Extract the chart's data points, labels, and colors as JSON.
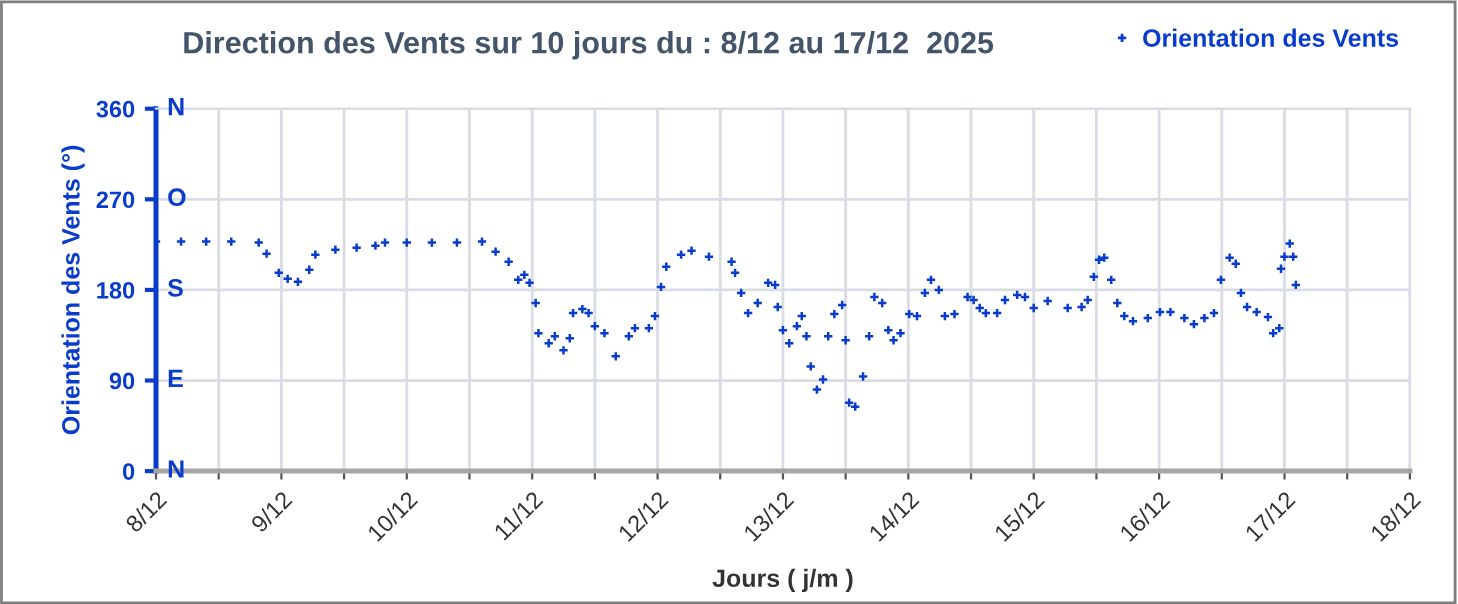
{
  "chart_data": {
    "type": "scatter",
    "title": "Direction des Vents sur 10 jours du : 8/12 au 17/12  2025",
    "xlabel": "Jours ( j/m )",
    "ylabel": "Orientation des Vents (°)",
    "series": [
      {
        "name": "Orientation des Vents",
        "color": "#0a3ccc",
        "marker": "cross",
        "x": [
          "2025-12-08T00:00",
          "2025-12-08T04:48",
          "2025-12-08T09:36",
          "2025-12-08T14:24",
          "2025-12-08T19:40",
          "2025-12-08T21:10",
          "2025-12-08T23:30",
          "2025-12-09T01:12",
          "2025-12-09T03:10",
          "2025-12-09T05:20",
          "2025-12-09T06:30",
          "2025-12-09T10:20",
          "2025-12-09T14:24",
          "2025-12-09T18:00",
          "2025-12-09T19:50",
          "2025-12-10T00:00",
          "2025-12-10T04:48",
          "2025-12-10T09:36",
          "2025-12-10T14:24",
          "2025-12-10T17:00",
          "2025-12-10T19:30",
          "2025-12-10T21:20",
          "2025-12-10T22:30",
          "2025-12-10T23:30",
          "2025-12-11T00:40",
          "2025-12-11T01:12",
          "2025-12-11T03:10",
          "2025-12-11T04:20",
          "2025-12-11T06:00",
          "2025-12-11T07:12",
          "2025-12-11T07:50",
          "2025-12-11T09:36",
          "2025-12-11T10:48",
          "2025-12-11T12:00",
          "2025-12-11T13:50",
          "2025-12-11T16:00",
          "2025-12-11T18:30",
          "2025-12-11T19:40",
          "2025-12-11T22:20",
          "2025-12-11T23:30",
          "2025-12-12T00:40",
          "2025-12-12T01:40",
          "2025-12-12T04:30",
          "2025-12-12T06:30",
          "2025-12-12T09:50",
          "2025-12-12T14:10",
          "2025-12-12T14:50",
          "2025-12-12T16:00",
          "2025-12-12T17:20",
          "2025-12-12T19:10",
          "2025-12-12T21:10",
          "2025-12-12T22:30",
          "2025-12-12T23:00",
          "2025-12-13T00:00",
          "2025-12-13T01:12",
          "2025-12-13T02:40",
          "2025-12-13T03:36",
          "2025-12-13T04:30",
          "2025-12-13T05:20",
          "2025-12-13T06:30",
          "2025-12-13T07:40",
          "2025-12-13T08:40",
          "2025-12-13T09:50",
          "2025-12-13T11:20",
          "2025-12-13T12:00",
          "2025-12-13T12:40",
          "2025-12-13T13:50",
          "2025-12-13T15:20",
          "2025-12-13T16:30",
          "2025-12-13T17:30",
          "2025-12-13T19:00",
          "2025-12-13T20:10",
          "2025-12-13T21:10",
          "2025-12-13T22:30",
          "2025-12-14T00:10",
          "2025-12-14T01:40",
          "2025-12-14T03:10",
          "2025-12-14T04:20",
          "2025-12-14T05:50",
          "2025-12-14T07:00",
          "2025-12-14T08:50",
          "2025-12-14T11:20",
          "2025-12-14T12:30",
          "2025-12-14T13:40",
          "2025-12-14T14:50",
          "2025-12-14T17:00",
          "2025-12-14T18:30",
          "2025-12-14T20:50",
          "2025-12-14T22:20",
          "2025-12-15T00:00",
          "2025-12-15T02:40",
          "2025-12-15T06:30",
          "2025-12-15T09:10",
          "2025-12-15T10:20",
          "2025-12-15T11:30",
          "2025-12-15T12:30",
          "2025-12-15T13:30",
          "2025-12-15T14:50",
          "2025-12-15T16:00",
          "2025-12-15T17:20",
          "2025-12-15T19:00",
          "2025-12-15T21:50",
          "2025-12-16T00:10",
          "2025-12-16T02:10",
          "2025-12-16T04:50",
          "2025-12-16T06:40",
          "2025-12-16T08:40",
          "2025-12-16T10:30",
          "2025-12-16T11:50",
          "2025-12-16T13:30",
          "2025-12-16T14:40",
          "2025-12-16T15:40",
          "2025-12-16T16:50",
          "2025-12-16T18:40",
          "2025-12-16T20:50",
          "2025-12-16T21:50",
          "2025-12-16T23:00",
          "2025-12-16T23:20",
          "2025-12-17T00:00",
          "2025-12-17T01:00",
          "2025-12-17T01:40",
          "2025-12-17T02:10"
        ],
        "values": [
          228,
          228,
          228,
          228,
          227,
          216,
          197,
          191,
          188,
          200,
          215,
          220,
          222,
          224,
          227,
          227,
          227,
          227,
          228,
          218,
          208,
          190,
          195,
          187,
          167,
          137,
          127,
          134,
          120,
          132,
          157,
          161,
          157,
          144,
          137,
          114,
          134,
          142,
          142,
          154,
          183,
          203,
          215,
          219,
          213,
          208,
          197,
          177,
          157,
          167,
          187,
          185,
          163,
          140,
          127,
          144,
          154,
          134,
          104,
          81,
          91,
          134,
          156,
          165,
          130,
          68,
          64,
          94,
          134,
          173,
          167,
          140,
          130,
          137,
          156,
          154,
          177,
          190,
          180,
          154,
          156,
          173,
          170,
          162,
          157,
          157,
          170,
          175,
          173,
          162,
          169,
          162,
          163,
          170,
          193,
          210,
          212,
          190,
          167,
          154,
          149,
          152,
          158,
          158,
          152,
          146,
          152,
          157,
          190,
          212,
          206,
          177,
          163,
          158,
          153,
          137,
          142,
          201,
          213,
          226,
          213,
          185
        ]
      }
    ],
    "xlim": [
      "2025-12-08",
      "2025-12-18"
    ],
    "xticks": [
      {
        "value": "2025-12-08",
        "label": "8/12"
      },
      {
        "value": "2025-12-08T12:00",
        "label": null
      },
      {
        "value": "2025-12-09",
        "label": "9/12"
      },
      {
        "value": "2025-12-09T12:00",
        "label": null
      },
      {
        "value": "2025-12-10",
        "label": "10/12"
      },
      {
        "value": "2025-12-10T12:00",
        "label": null
      },
      {
        "value": "2025-12-11",
        "label": "11/12"
      },
      {
        "value": "2025-12-11T12:00",
        "label": null
      },
      {
        "value": "2025-12-12",
        "label": "12/12"
      },
      {
        "value": "2025-12-12T12:00",
        "label": null
      },
      {
        "value": "2025-12-13",
        "label": "13/12"
      },
      {
        "value": "2025-12-13T12:00",
        "label": null
      },
      {
        "value": "2025-12-14",
        "label": "14/12"
      },
      {
        "value": "2025-12-14T12:00",
        "label": null
      },
      {
        "value": "2025-12-15",
        "label": "15/12"
      },
      {
        "value": "2025-12-15T12:00",
        "label": null
      },
      {
        "value": "2025-12-16",
        "label": "16/12"
      },
      {
        "value": "2025-12-16T12:00",
        "label": null
      },
      {
        "value": "2025-12-17",
        "label": "17/12"
      },
      {
        "value": "2025-12-17T12:00",
        "label": null
      },
      {
        "value": "2025-12-18",
        "label": "18/12"
      }
    ],
    "ylim": [
      0,
      360
    ],
    "yticks": [
      0,
      90,
      180,
      270,
      360
    ],
    "annotations": [
      "N",
      "E",
      "S",
      "O",
      "N"
    ],
    "grid": true,
    "legend": "top right"
  }
}
